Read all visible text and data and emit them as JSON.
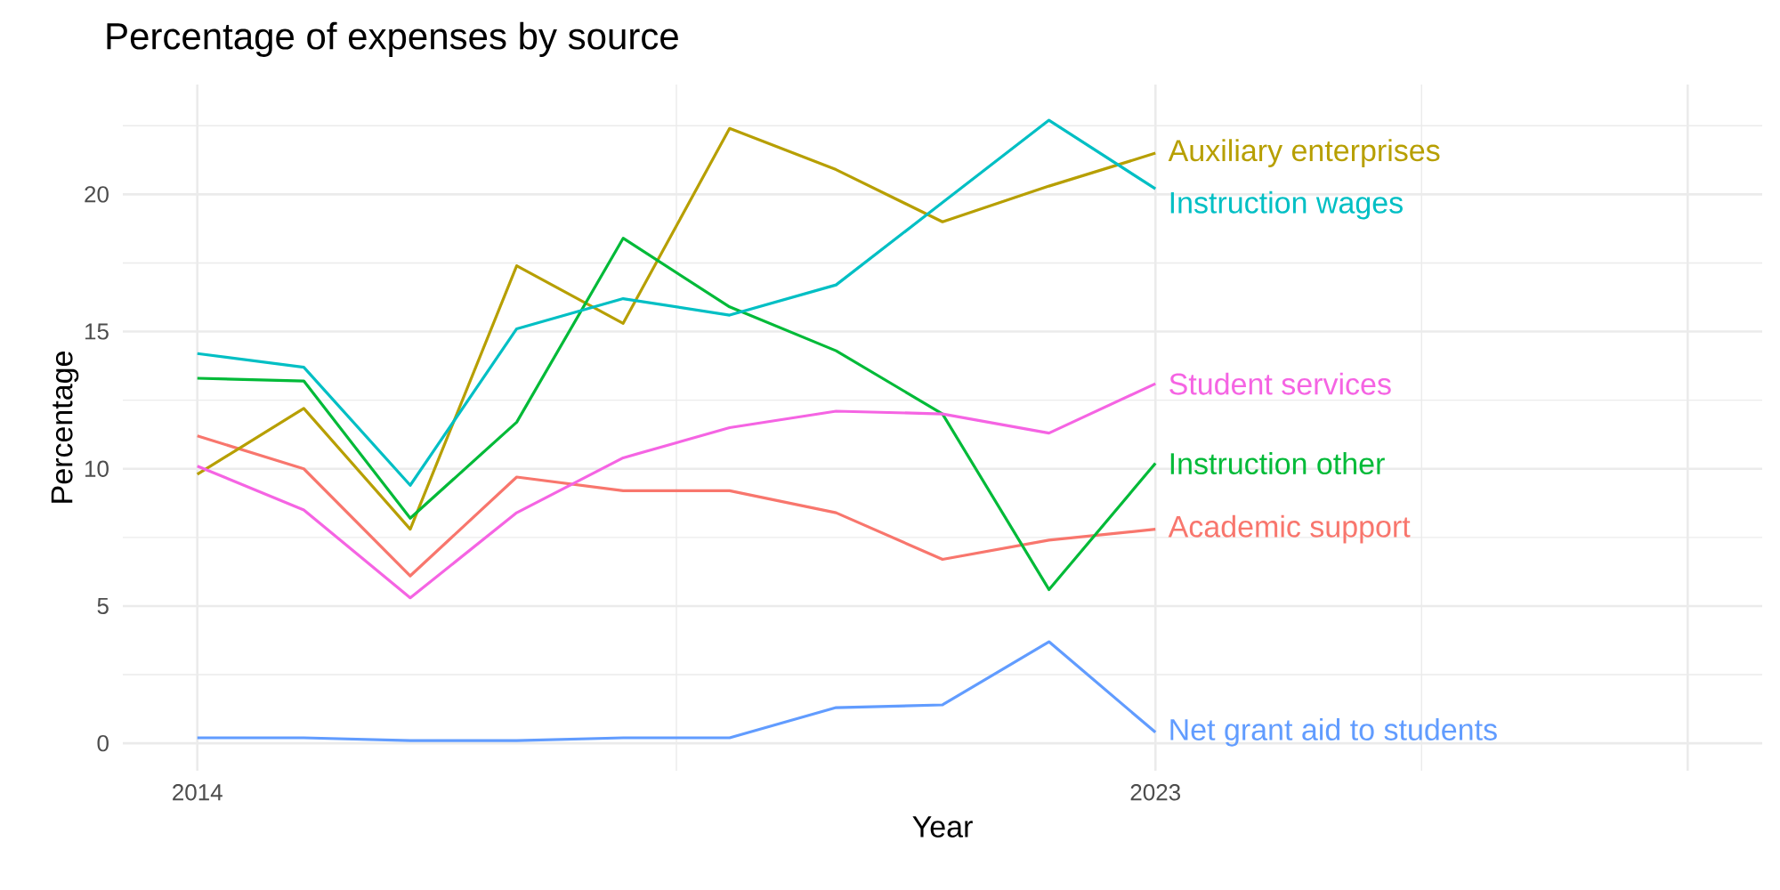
{
  "chart_data": {
    "type": "line",
    "title": "Percentage of expenses by source",
    "xlabel": "Year",
    "ylabel": "Percentage",
    "x": [
      2014,
      2015,
      2016,
      2017,
      2018,
      2019,
      2020,
      2021,
      2022,
      2023
    ],
    "series": [
      {
        "name": "Academic support",
        "color": "#f8766d",
        "values": [
          11.2,
          10.0,
          6.1,
          9.7,
          9.2,
          9.2,
          8.4,
          6.7,
          7.4,
          7.8
        ]
      },
      {
        "name": "Auxiliary enterprises",
        "color": "#b79f00",
        "values": [
          9.8,
          12.2,
          7.8,
          17.4,
          15.3,
          22.4,
          20.9,
          19.0,
          20.3,
          21.5
        ]
      },
      {
        "name": "Instruction other",
        "color": "#00ba38",
        "values": [
          13.3,
          13.2,
          8.2,
          11.7,
          18.4,
          15.9,
          14.3,
          12.0,
          5.6,
          10.2
        ]
      },
      {
        "name": "Instruction wages",
        "color": "#00bfc4",
        "values": [
          14.2,
          13.7,
          9.4,
          15.1,
          16.2,
          15.6,
          16.7,
          19.7,
          22.7,
          20.2
        ]
      },
      {
        "name": "Net grant aid to students",
        "color": "#619cff",
        "values": [
          0.2,
          0.2,
          0.1,
          0.1,
          0.2,
          0.2,
          1.3,
          1.4,
          3.7,
          0.4
        ]
      },
      {
        "name": "Student services",
        "color": "#f564e3",
        "values": [
          10.1,
          8.5,
          5.3,
          8.4,
          10.4,
          11.5,
          12.1,
          12.0,
          11.3,
          13.1
        ]
      }
    ],
    "xlim": [
      2013.3,
      2028.7
    ],
    "ylim": [
      -1,
      24
    ],
    "xticks": [
      2014,
      2023,
      {
        "value": 2028,
        "label": null
      }
    ],
    "yticks": [
      0,
      5,
      10,
      15,
      20
    ],
    "grid": true,
    "line_style": "solid"
  }
}
